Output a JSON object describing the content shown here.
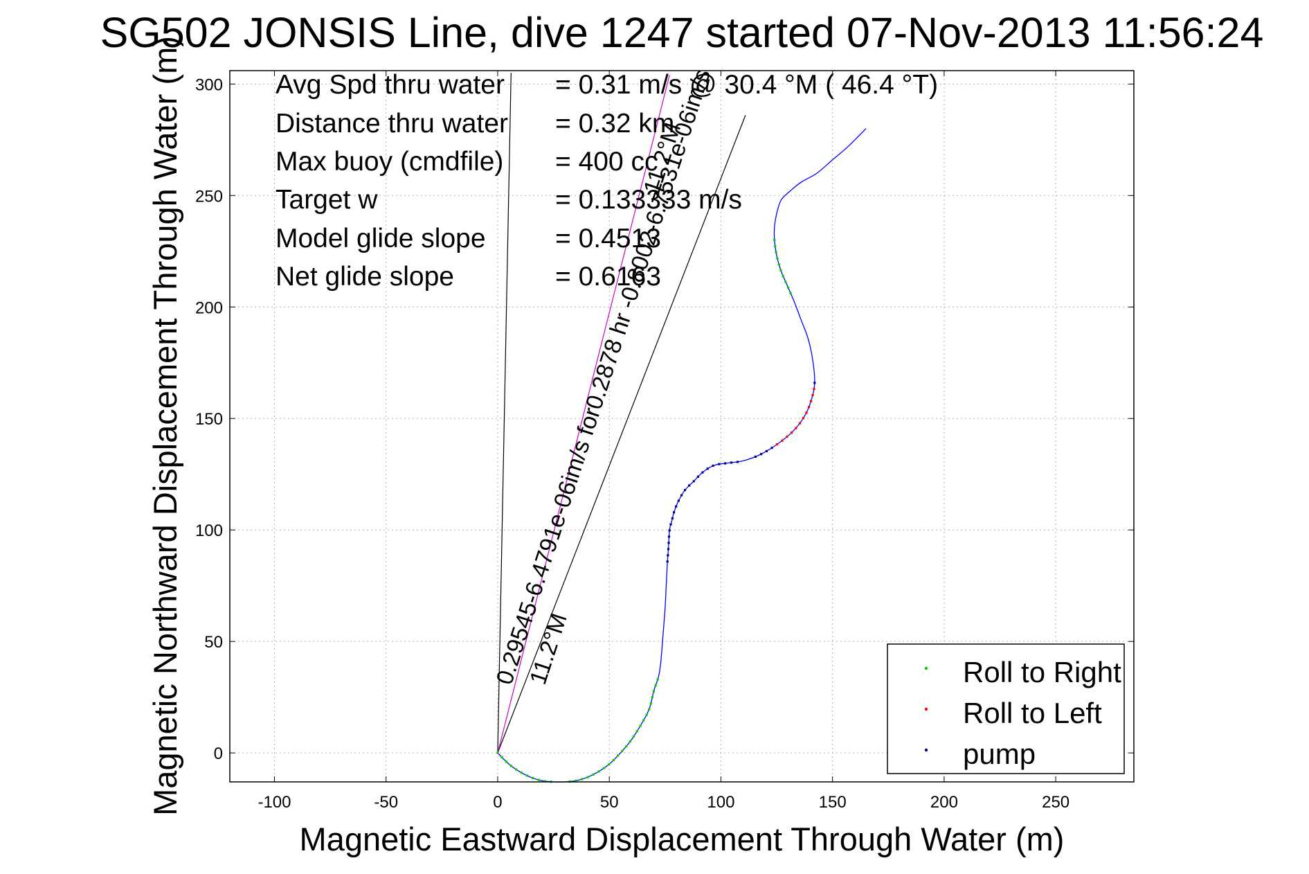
{
  "chart_data": {
    "type": "line",
    "title": "SG502 JONSIS Line, dive 1247 started 07-Nov-2013 11:56:24",
    "xlabel": "Magnetic Eastward Displacement Through Water (m)",
    "ylabel": "Magnetic Northward Displacement Through Water (m)",
    "xlim": [
      -120,
      285
    ],
    "ylim": [
      -13,
      306
    ],
    "xticks": [
      -100,
      -50,
      0,
      50,
      100,
      150,
      200,
      250
    ],
    "yticks": [
      0,
      50,
      100,
      150,
      200,
      250,
      300
    ],
    "grid": true,
    "legend_placement": "bottom-right",
    "legend": [
      {
        "label": "Roll to Right",
        "color": "#00cc00"
      },
      {
        "label": "Roll to Left",
        "color": "#ff0000"
      },
      {
        "label": "pump",
        "color": "#000080"
      }
    ],
    "info": [
      {
        "label": "Avg Spd thru water",
        "value": "=  0.31 m/s @   30.4 °M ( 46.4 °T)"
      },
      {
        "label": "Distance thru water",
        "value": "=  0.32 km"
      },
      {
        "label": "Max buoy (cmdfile)",
        "value": "= 400 cc"
      },
      {
        "label": "Target w",
        "value": "= 0.133333 m/s"
      },
      {
        "label": "Model glide slope",
        "value": "= 0.4513"
      },
      {
        "label": "Net glide slope",
        "value": "= 0.6163"
      }
    ],
    "track": {
      "name": "track",
      "color": "#0000ff",
      "x": [
        0,
        5,
        10,
        15,
        20,
        25,
        30,
        35,
        40,
        45,
        50,
        55,
        60,
        65,
        68,
        70,
        72,
        73,
        74,
        75,
        75.5,
        76,
        76.5,
        77,
        78,
        79,
        81,
        84,
        88,
        92,
        97,
        103,
        110,
        118,
        126,
        133,
        138,
        141,
        142,
        141,
        139,
        136,
        133,
        130,
        127,
        125,
        124,
        124,
        125,
        127,
        131,
        136,
        143,
        150,
        157,
        165
      ],
      "y": [
        0,
        -5,
        -8.5,
        -11,
        -12.5,
        -13,
        -13,
        -12.5,
        -11,
        -8.5,
        -5,
        0,
        6,
        14,
        20,
        28,
        34,
        40,
        52,
        65,
        75,
        85,
        92,
        100,
        104,
        108,
        113,
        118,
        122,
        126,
        129,
        130,
        131,
        134,
        139,
        145,
        152,
        160,
        167,
        177,
        186,
        194,
        202,
        209,
        216,
        223,
        230,
        236,
        242,
        248,
        252,
        256,
        260,
        266,
        272,
        280
      ]
    },
    "samples": {
      "roll_right_y_ranges": [
        [
          -13,
          35
        ],
        [
          205,
          232
        ]
      ],
      "roll_left_y_ranges": [
        [
          138,
          165
        ]
      ],
      "pump_y_ranges": [
        [
          85,
          131
        ],
        [
          132,
          148
        ],
        [
          150,
          167
        ]
      ]
    },
    "lines": [
      {
        "from": [
          0,
          0
        ],
        "to": [
          6,
          305
        ],
        "color": "#000000"
      },
      {
        "from": [
          0,
          0
        ],
        "to": [
          111,
          286
        ],
        "color": "#000000"
      },
      {
        "from": [
          0,
          0
        ],
        "to": [
          77,
          304
        ],
        "color": "#cc00cc"
      }
    ],
    "annotations": [
      {
        "text": "0.29545-6.4791e-06im/s for0.2878 hr -0.8002-6.7531e-06im/s",
        "x": 6,
        "y": 30,
        "angle_deg": -72
      },
      {
        "text": "11.2°M",
        "x": 21,
        "y": 30,
        "angle_deg": -72
      },
      {
        "text": "11.2°M",
        "x": 72,
        "y": 250,
        "angle_deg": -72
      }
    ]
  }
}
